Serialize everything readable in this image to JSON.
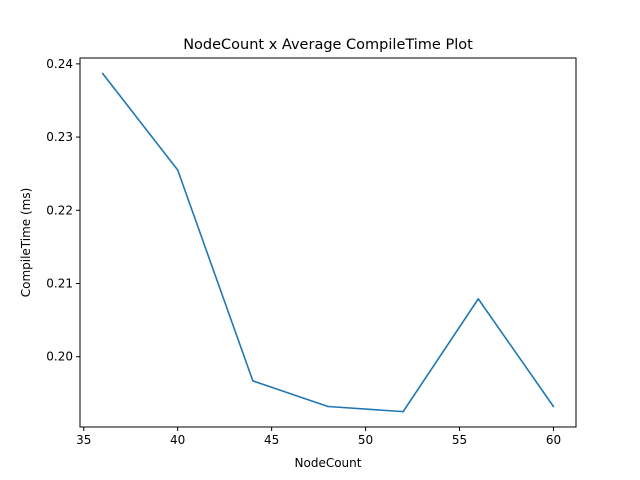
{
  "chart_data": {
    "type": "line",
    "title": "NodeCount x Average CompileTime Plot",
    "xlabel": "NodeCount",
    "ylabel": "CompileTime (ms)",
    "xlim": [
      34.8,
      61.2
    ],
    "ylim": [
      0.1904,
      0.2408
    ],
    "xticks": [
      35,
      40,
      45,
      50,
      55,
      60
    ],
    "yticks": [
      0.2,
      0.21,
      0.22,
      0.23,
      0.24
    ],
    "ytick_labels": [
      "0.20",
      "0.21",
      "0.22",
      "0.23",
      "0.24"
    ],
    "grid": false,
    "series": [
      {
        "color": "#1f77b4",
        "x": [
          36,
          40,
          44,
          48,
          52,
          56,
          60
        ],
        "y": [
          0.2387,
          0.2255,
          0.1967,
          0.1932,
          0.1925,
          0.2079,
          0.1932
        ]
      }
    ]
  }
}
